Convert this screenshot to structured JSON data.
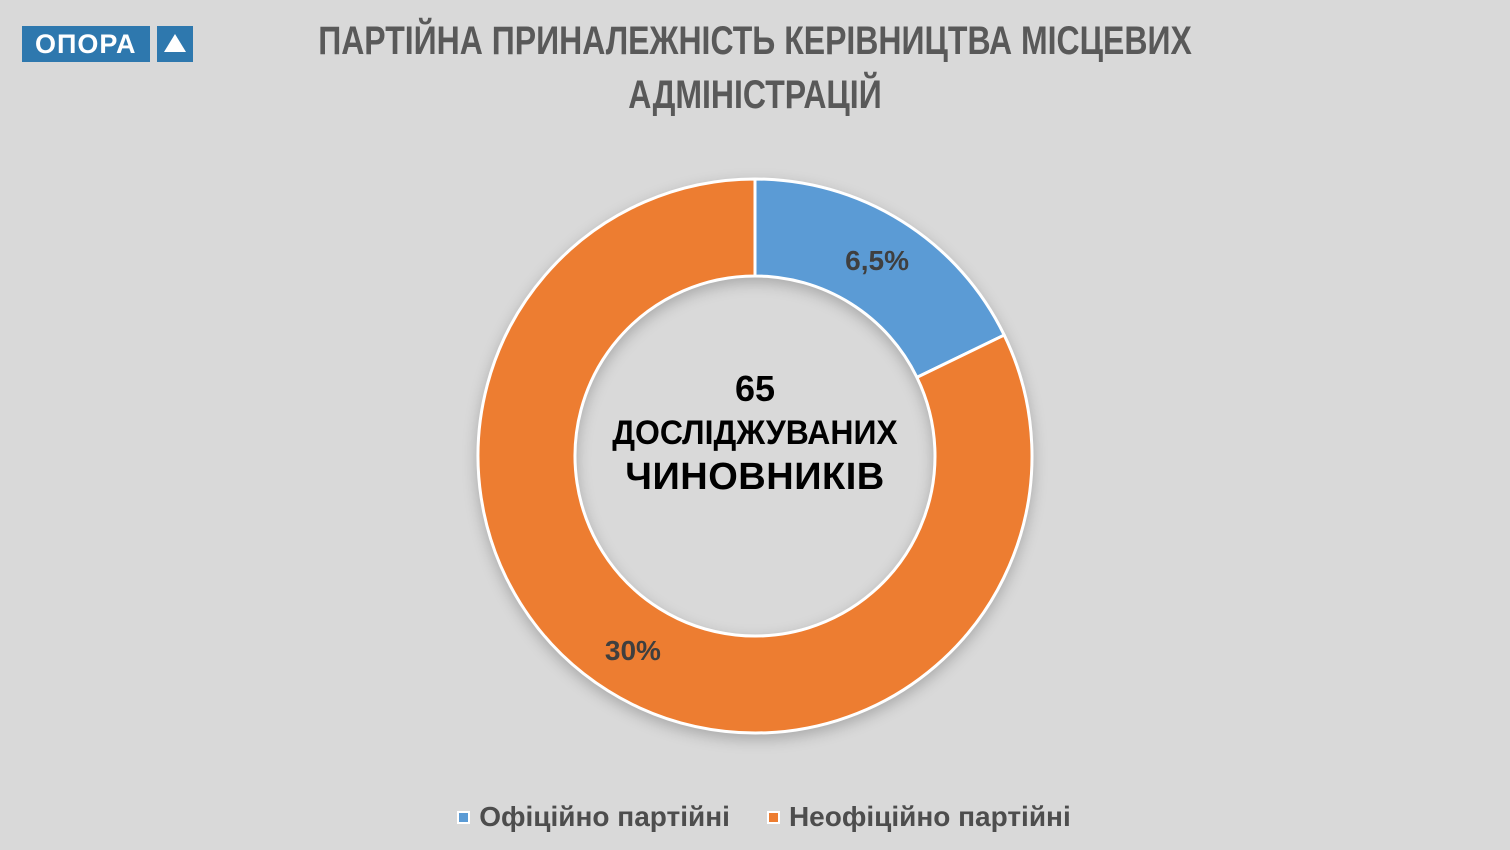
{
  "background_color": "#D9D9D9",
  "logo": {
    "wordmark": "ОПОРА",
    "color": "#2E78AE",
    "triangle_icon": "triangle-up"
  },
  "title": {
    "lines": [
      "ПАРТІЙНА ПРИНАЛЕЖНІСТЬ КЕРІВНИЦТВА МІСЦЕВИХ",
      "АДМІНІСТРАЦІЙ"
    ],
    "color": "#595959"
  },
  "chart_data": {
    "type": "pie",
    "subtype": "donut",
    "title": "ПАРТІЙНА ПРИНАЛЕЖНІСТЬ КЕРІВНИЦТВА МІСЦЕВИХ АДМІНІСТРАЦІЙ",
    "categories": [
      "Офіційно партійні",
      "Неофіційно партійні"
    ],
    "values": [
      6.5,
      30
    ],
    "value_labels": [
      "6,5%",
      "30%"
    ],
    "colors": [
      "#5B9BD5",
      "#ED7D31"
    ],
    "label_color": "#3F3F3F",
    "start_angle_deg": 0,
    "direction": "clockwise",
    "hole_ratio": 0.65,
    "center_text": [
      "65",
      "ДОСЛІДЖУВАНИХ",
      "ЧИНОВНИКІВ"
    ],
    "legend_position": "bottom"
  }
}
